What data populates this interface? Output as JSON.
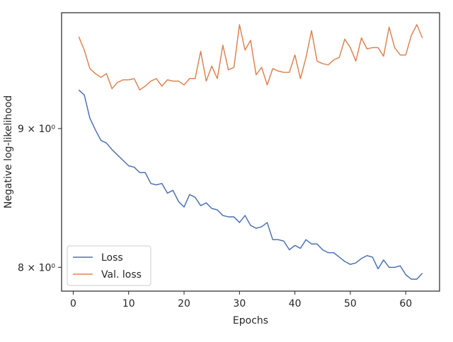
{
  "chart_data": {
    "type": "line",
    "xlabel": "Epochs",
    "ylabel": "Negative log-likelihood",
    "x": [
      1,
      2,
      3,
      4,
      5,
      6,
      7,
      8,
      9,
      10,
      11,
      12,
      13,
      14,
      15,
      16,
      17,
      18,
      19,
      20,
      21,
      22,
      23,
      24,
      25,
      26,
      27,
      28,
      29,
      30,
      31,
      32,
      33,
      34,
      35,
      36,
      37,
      38,
      39,
      40,
      41,
      42,
      43,
      44,
      45,
      46,
      47,
      48,
      49,
      50,
      51,
      52,
      53,
      54,
      55,
      56,
      57,
      58,
      59,
      60,
      61,
      62,
      63
    ],
    "series": [
      {
        "name": "Loss",
        "color": "#4c72b0",
        "values": [
          9.3,
          9.26,
          9.08,
          8.99,
          8.91,
          8.89,
          8.84,
          8.8,
          8.76,
          8.72,
          8.71,
          8.67,
          8.67,
          8.59,
          8.58,
          8.59,
          8.52,
          8.54,
          8.46,
          8.42,
          8.51,
          8.49,
          8.43,
          8.45,
          8.41,
          8.4,
          8.36,
          8.35,
          8.35,
          8.31,
          8.36,
          8.29,
          8.27,
          8.28,
          8.31,
          8.19,
          8.19,
          8.18,
          8.12,
          8.15,
          8.13,
          8.19,
          8.16,
          8.16,
          8.12,
          8.1,
          8.1,
          8.07,
          8.04,
          8.02,
          8.03,
          8.06,
          8.08,
          8.07,
          7.99,
          8.05,
          8.0,
          8.0,
          8.01,
          7.95,
          7.92,
          7.92,
          7.96
        ]
      },
      {
        "name": "Val. loss",
        "color": "#dd8452",
        "values": [
          9.73,
          9.62,
          9.47,
          9.43,
          9.4,
          9.43,
          9.31,
          9.36,
          9.38,
          9.38,
          9.39,
          9.3,
          9.33,
          9.37,
          9.39,
          9.33,
          9.38,
          9.37,
          9.37,
          9.34,
          9.39,
          9.39,
          9.61,
          9.37,
          9.49,
          9.39,
          9.66,
          9.46,
          9.48,
          9.83,
          9.62,
          9.7,
          9.42,
          9.48,
          9.34,
          9.47,
          9.45,
          9.44,
          9.44,
          9.58,
          9.39,
          9.56,
          9.78,
          9.53,
          9.51,
          9.5,
          9.54,
          9.56,
          9.71,
          9.64,
          9.53,
          9.72,
          9.63,
          9.64,
          9.64,
          9.57,
          9.81,
          9.64,
          9.58,
          9.58,
          9.74,
          9.83,
          9.72
        ]
      }
    ],
    "xlim": [
      -2.1,
      66.1
    ],
    "xticks": [
      0,
      10,
      20,
      30,
      40,
      50,
      60
    ],
    "ylim": [
      7.84,
      9.93
    ],
    "yscale": "log",
    "yticks": [
      {
        "value": 8,
        "label": "8 × 10⁰"
      },
      {
        "value": 9,
        "label": "9 × 10⁰"
      }
    ],
    "legend": "lower left"
  }
}
